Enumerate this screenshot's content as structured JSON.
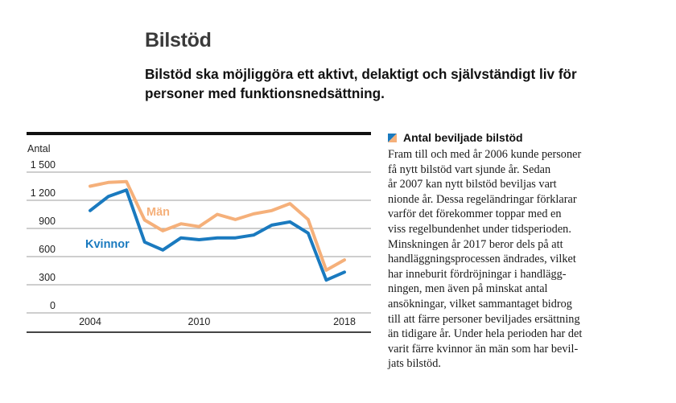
{
  "header": {
    "title": "Bilstöd",
    "lead": "Bilstöd ska möjliggöra ett aktivt, delaktigt och självständigt liv för personer med funktionsnedsättning."
  },
  "sidebar": {
    "heading": "Antal beviljade bilstöd",
    "lines": [
      "Fram till och med år 2006 kunde personer",
      "få nytt bilstöd vart sjunde år. Sedan",
      "år 2007 kan nytt bilstöd beviljas vart",
      "nionde år. Dessa regeländringar förklarar",
      "varför det förekommer toppar med en",
      "viss regelbundenhet under tidsperioden.",
      "Minskningen år 2017 beror dels på att",
      "handläggningsprocessen ändrades, vilket",
      "har inneburit fördröjningar i handlägg-",
      "ningen, men även på minskat antal",
      "ansökningar, vilket sammantaget bidrog",
      "till att färre personer beviljades ersättning",
      "än tidigare år. Under hela perioden har det",
      "varit färre kvinnor än män som har bevil-",
      "jats bilstöd."
    ]
  },
  "colors": {
    "kvinnor": "#1a7abf",
    "man": "#f5b07a",
    "grid": "#b0b0b0",
    "frame": "#111111"
  },
  "chart_data": {
    "type": "line",
    "title": "Antal beviljade bilstöd",
    "ylabel": "Antal",
    "xlabel": "",
    "x": [
      2004,
      2005,
      2006,
      2007,
      2008,
      2009,
      2010,
      2011,
      2012,
      2013,
      2014,
      2015,
      2016,
      2017,
      2018
    ],
    "xticks": [
      "2004",
      "2010",
      "2018"
    ],
    "xtick_values": [
      2004,
      2010,
      2018
    ],
    "yticks": [
      "0",
      "300",
      "600",
      "900",
      "1 200",
      "1 500"
    ],
    "ytick_values": [
      0,
      300,
      600,
      900,
      1200,
      1500
    ],
    "ylim": [
      0,
      1500
    ],
    "xlim": [
      2000.5,
      2019.5
    ],
    "grid": true,
    "legend": "inline labels",
    "series": [
      {
        "name": "Män",
        "color": "#f5b07a",
        "values": [
          1350,
          1390,
          1400,
          990,
          875,
          950,
          920,
          1050,
          995,
          1055,
          1090,
          1165,
          995,
          455,
          565
        ]
      },
      {
        "name": "Kvinnor",
        "color": "#1a7abf",
        "values": [
          1090,
          1240,
          1310,
          755,
          670,
          800,
          780,
          800,
          800,
          830,
          935,
          970,
          850,
          350,
          435
        ]
      }
    ]
  }
}
